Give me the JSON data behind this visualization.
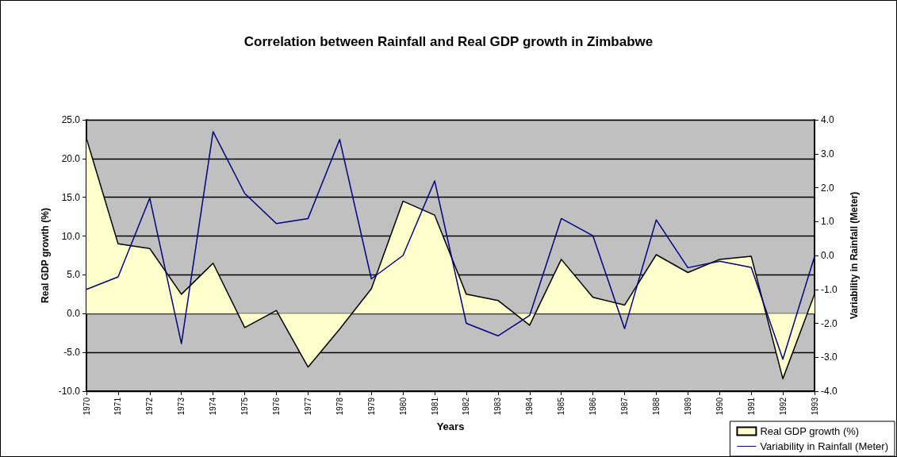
{
  "chart_data": {
    "type": "area",
    "title": "Correlation between Rainfall and Real GDP growth in Zimbabwe",
    "xlabel": "Years",
    "ylabel": "Real GDP growth (%)",
    "y2label": "Variability in Rainfall (Meter)",
    "categories": [
      "1970",
      "1971",
      "1972",
      "1973",
      "1974",
      "1975",
      "1976",
      "1977",
      "1978",
      "1979",
      "1980",
      "1981",
      "1982",
      "1983",
      "1984",
      "1985",
      "1986",
      "1987",
      "1988",
      "1989",
      "1990",
      "1991",
      "1992",
      "1993"
    ],
    "series": [
      {
        "name": "Real GDP growth (%)",
        "color": "#ffffcc",
        "values": [
          22.6,
          9.0,
          8.4,
          2.5,
          6.5,
          -1.8,
          0.4,
          -6.9,
          -2.0,
          3.2,
          14.5,
          12.7,
          2.5,
          1.7,
          -1.5,
          7.0,
          2.1,
          1.1,
          7.6,
          5.3,
          7.0,
          7.4,
          -8.4,
          2.5
        ]
      },
      {
        "name": "Variability in Rainfall (Meter)",
        "type": "line",
        "axis": "y2",
        "color": "#000080",
        "values": [
          -1.0,
          -0.63,
          1.69,
          -2.6,
          3.65,
          1.83,
          0.94,
          1.09,
          3.42,
          -0.69,
          0.0,
          2.2,
          -2.0,
          -2.37,
          -1.77,
          1.09,
          0.58,
          -2.16,
          1.05,
          -0.36,
          -0.17,
          -0.35,
          -3.06,
          -0.03
        ]
      }
    ],
    "ylim": [
      -10,
      25
    ],
    "yticks": [
      {
        "value": -10,
        "label": "-10.0"
      },
      {
        "value": -5,
        "label": "-5.0"
      },
      {
        "value": 0,
        "label": "0.0"
      },
      {
        "value": 5,
        "label": "5.0"
      },
      {
        "value": 10,
        "label": "10.0"
      },
      {
        "value": 15,
        "label": "15.0"
      },
      {
        "value": 20,
        "label": "20.0"
      },
      {
        "value": 25,
        "label": "25.0"
      }
    ],
    "y2lim": [
      -4,
      4
    ],
    "y2ticks": [
      {
        "value": -4,
        "label": "-4.0"
      },
      {
        "value": -3,
        "label": "-3.0"
      },
      {
        "value": -2,
        "label": "-2.0"
      },
      {
        "value": -1,
        "label": "-1.0"
      },
      {
        "value": 0,
        "label": "0.0"
      },
      {
        "value": 1,
        "label": "1.0"
      },
      {
        "value": 2,
        "label": "2.0"
      },
      {
        "value": 3,
        "label": "3.0"
      },
      {
        "value": 4,
        "label": "4.0"
      }
    ],
    "grid": "y",
    "legend": "bottom right",
    "marker": "none",
    "line_style": "solid"
  }
}
